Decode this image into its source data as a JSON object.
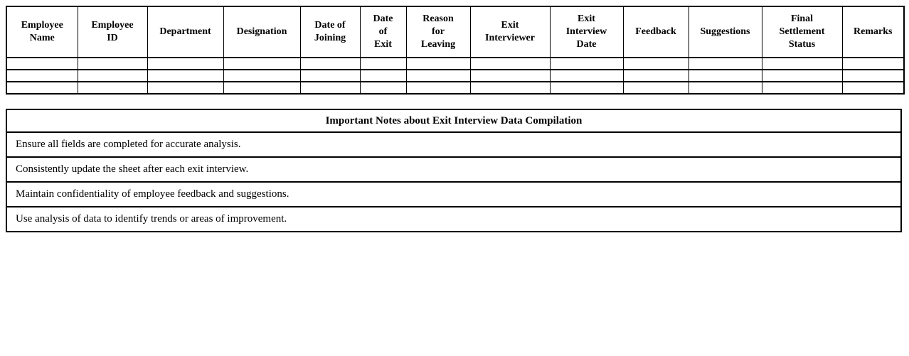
{
  "exit_interview_table": {
    "columns": [
      {
        "id": "employee-name",
        "label": "Employee\nName"
      },
      {
        "id": "employee-id",
        "label": "Employee\nID"
      },
      {
        "id": "department",
        "label": "Department"
      },
      {
        "id": "designation",
        "label": "Designation"
      },
      {
        "id": "date-of-joining",
        "label": "Date of\nJoining"
      },
      {
        "id": "date-of-exit",
        "label": "Date\nof\nExit"
      },
      {
        "id": "reason-for-leaving",
        "label": "Reason\nfor\nLeaving"
      },
      {
        "id": "exit-interviewer",
        "label": "Exit\nInterviewer"
      },
      {
        "id": "exit-interview-date",
        "label": "Exit\nInterview\nDate"
      },
      {
        "id": "feedback",
        "label": "Feedback"
      },
      {
        "id": "suggestions",
        "label": "Suggestions"
      },
      {
        "id": "final-settlement-status",
        "label": "Final\nSettlement\nStatus"
      },
      {
        "id": "remarks",
        "label": "Remarks"
      }
    ],
    "empty_row_count": 3
  },
  "notes_table": {
    "title": "Important Notes about Exit Interview Data Compilation",
    "notes": [
      "Ensure all fields are completed for accurate analysis.",
      "Consistently update the sheet after each exit interview.",
      "Maintain confidentiality of employee feedback and suggestions.",
      "Use analysis of data to identify trends or areas of improvement."
    ]
  },
  "colors": {
    "border": "#000000",
    "background": "#ffffff",
    "text": "#000000"
  }
}
